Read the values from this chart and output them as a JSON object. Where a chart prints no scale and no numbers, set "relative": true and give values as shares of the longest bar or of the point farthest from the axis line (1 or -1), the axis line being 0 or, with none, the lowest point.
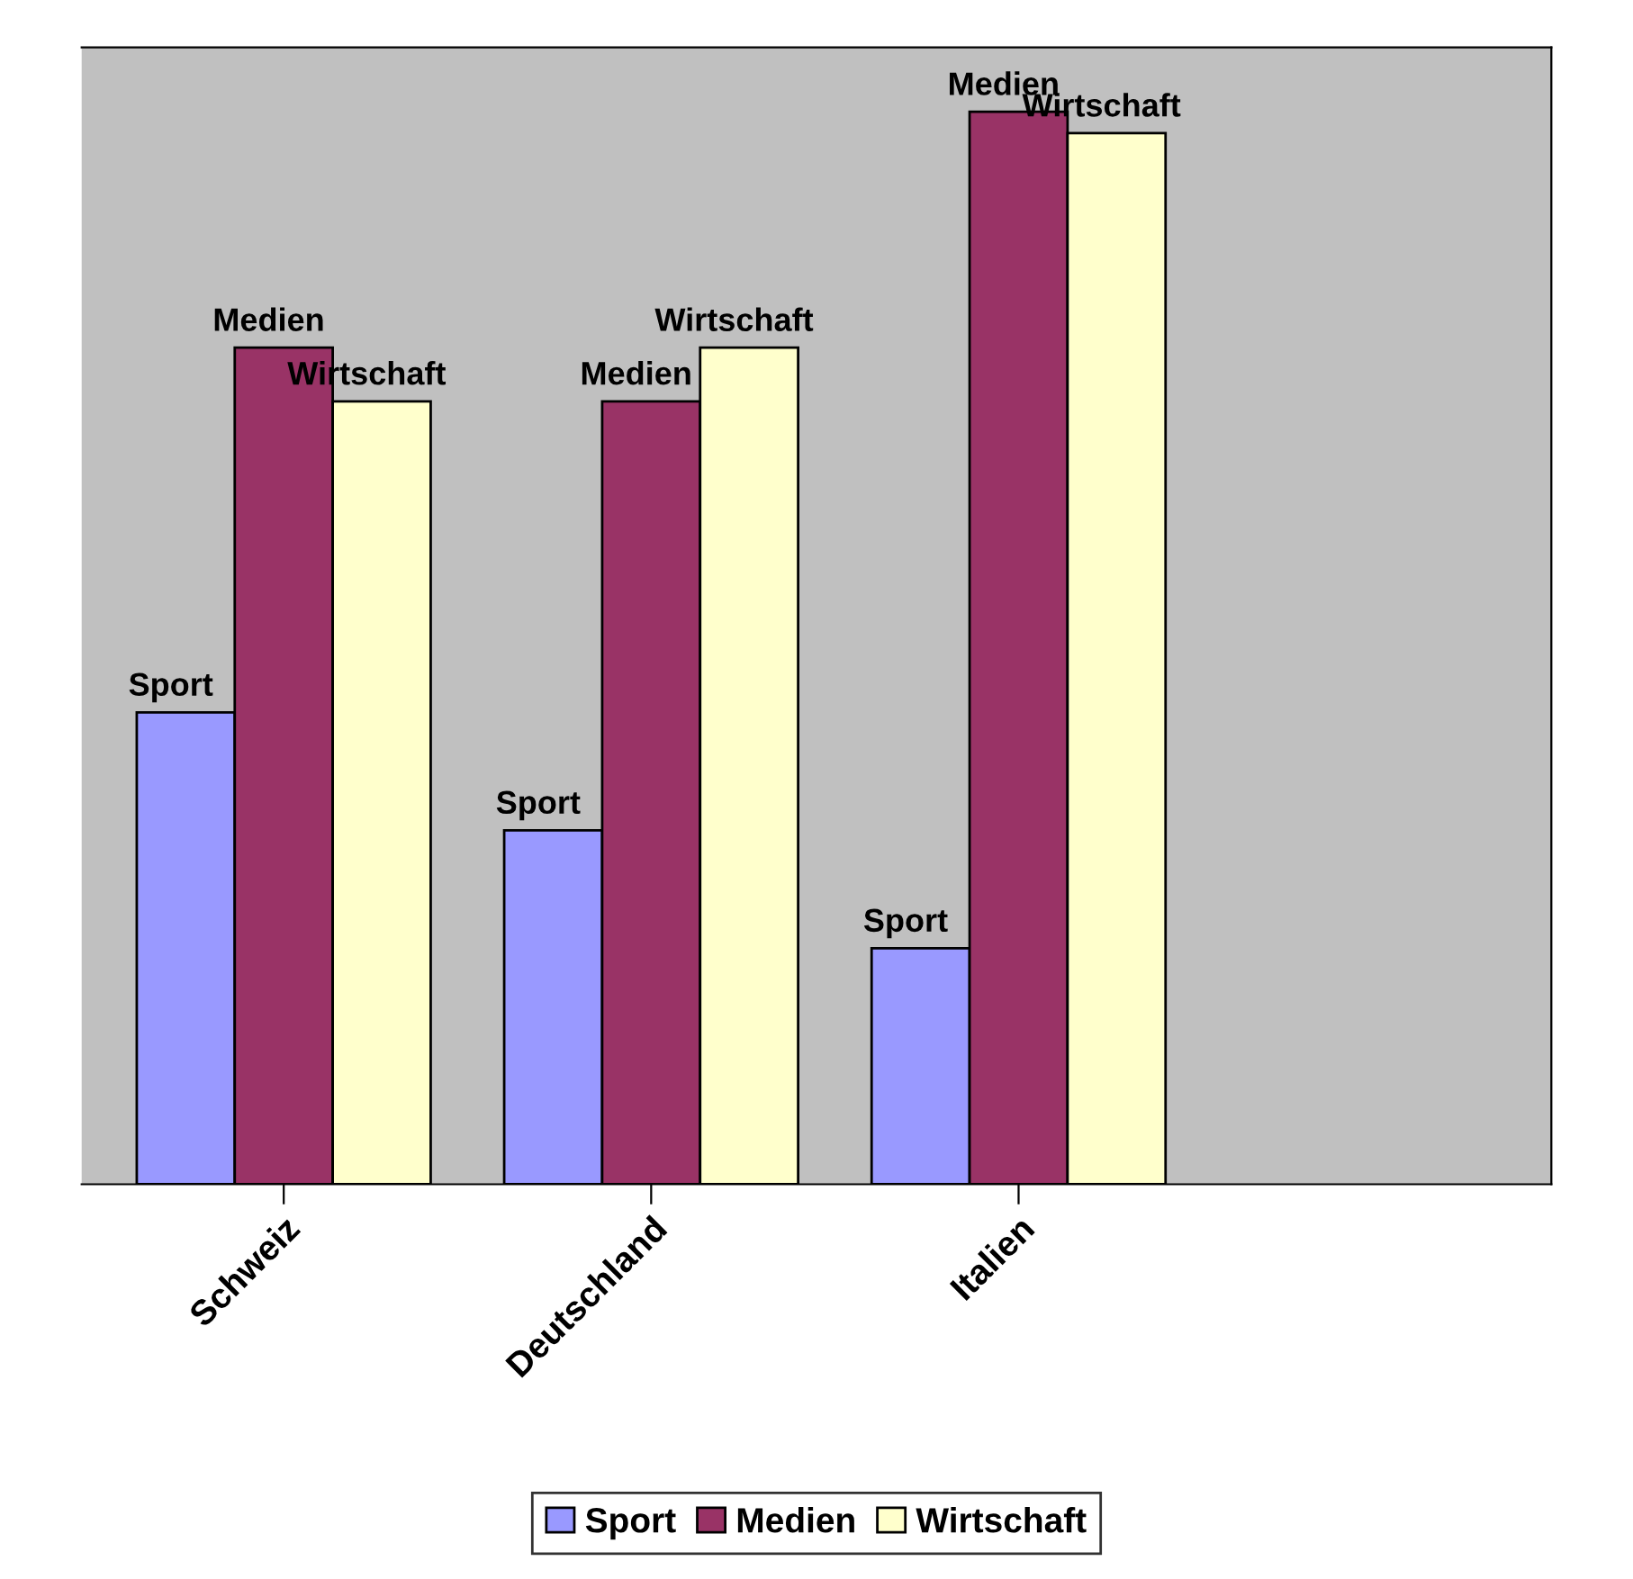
{
  "chart_data": {
    "type": "bar",
    "relative": true,
    "categories": [
      "Schweiz",
      "Deutschland",
      "Italien"
    ],
    "series": [
      {
        "name": "Sport",
        "color": "#9999ff",
        "values": [
          0.44,
          0.33,
          0.22
        ]
      },
      {
        "name": "Medien",
        "color": "#993366",
        "values": [
          0.78,
          0.73,
          1
        ]
      },
      {
        "name": "Wirtschaft",
        "color": "#ffffcc",
        "values": [
          0.73,
          0.78,
          0.98
        ]
      }
    ],
    "annotations": [
      "Sport",
      "Medien",
      "Wirtschaft",
      "Sport",
      "Medien",
      "Wirtschaft",
      "Sport",
      "Medien",
      "Wirtschaft"
    ],
    "legend": "bottom"
  }
}
